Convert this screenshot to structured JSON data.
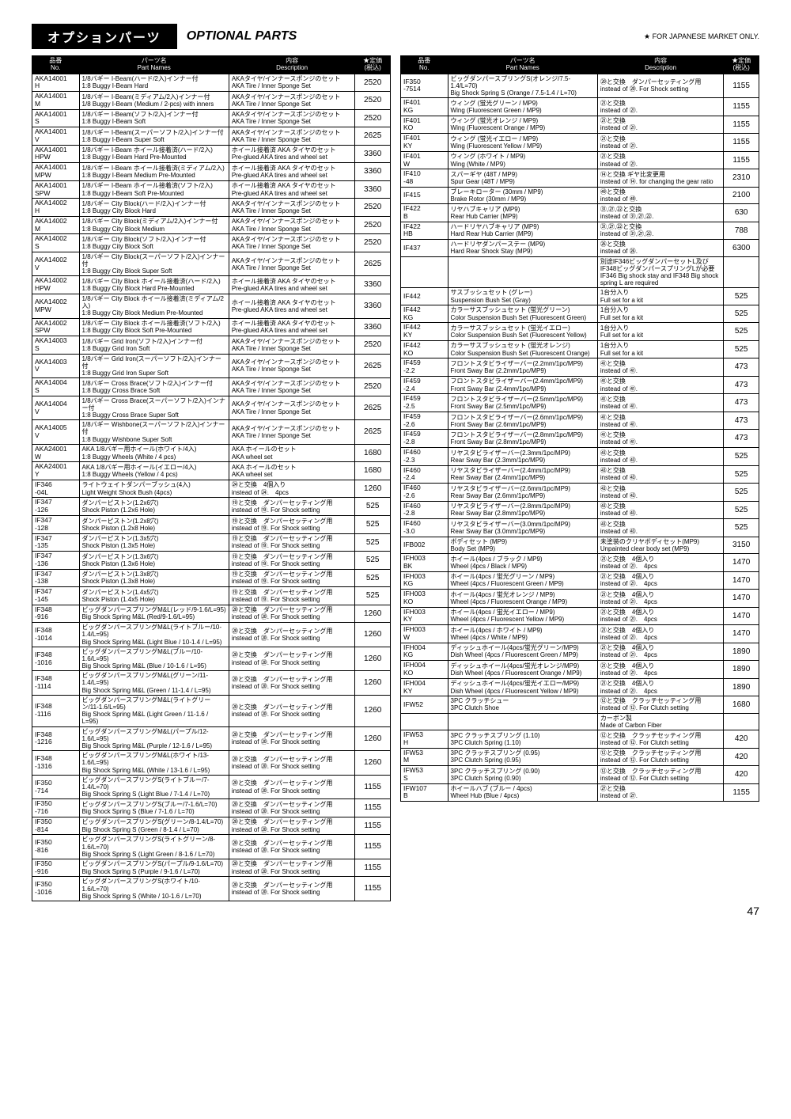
{
  "header": {
    "titleJp": "オプションパーツ",
    "titleEn": "OPTIONAL PARTS",
    "starNote": "★ FOR JAPANESE MARKET ONLY."
  },
  "columns": {
    "no": {
      "jp": "品番",
      "en": "No."
    },
    "name": {
      "jp": "パーツ名",
      "en": "Part Names"
    },
    "desc": {
      "jp": "内容",
      "en": "Description"
    },
    "price": {
      "jp": "★定価",
      "en": "(税込)"
    }
  },
  "leftRows": [
    {
      "no": "AKA14001\nH",
      "nameJp": "1/8バギー I-Beam(ハード/2入)インナー付",
      "nameEn": "1:8 Buggy I-Beam Hard",
      "descJp": "AKAタイヤ/インナースポンジのセット",
      "descEn": "AKA Tire / Inner Sponge Set",
      "price": "2520"
    },
    {
      "no": "AKA14001\nM",
      "nameJp": "1/8バギー I-Beam(ミディアム/2入)インナー付",
      "nameEn": "1/8 Buggy I-Beam (Medium / 2-pcs) with inners",
      "descJp": "AKAタイヤ/インナースポンジのセット",
      "descEn": "AKA Tire / Inner Sponge Set",
      "price": "2520"
    },
    {
      "no": "AKA14001\nS",
      "nameJp": "1/8バギー I-Beam(ソフト/2入)インナー付",
      "nameEn": "1:8 Buggy I-Beam Soft",
      "descJp": "AKAタイヤ/インナースポンジのセット",
      "descEn": "AKA Tire / Inner Sponge Set",
      "price": "2520"
    },
    {
      "no": "AKA14001\nV",
      "nameJp": "1/8バギー I-Beam(スーパーソフト/2入)インナー付",
      "nameEn": "1:8 Buggy I-Beam Super Soft",
      "descJp": "AKAタイヤ/インナースポンジのセット",
      "descEn": "AKA Tire / Inner Sponge Set",
      "price": "2625"
    },
    {
      "no": "AKA14001\nHPW",
      "nameJp": "1/8バギー I-Beam ホイール接着済(ハード/2入)",
      "nameEn": "1:8 Buggy I-Beam Hard Pre-Mounted",
      "descJp": "ホイール接着済 AKA タイヤのセット",
      "descEn": "Pre-glued AKA tires and wheel set",
      "price": "3360"
    },
    {
      "no": "AKA14001\nMPW",
      "nameJp": "1/8バギー I-Beam ホイール接着済(ミディアム/2入)",
      "nameEn": "1:8 Buggy I-Beam Medium Pre-Mounted",
      "descJp": "ホイール接着済 AKA タイヤのセット",
      "descEn": "Pre-glued AKA tires and wheel set",
      "price": "3360"
    },
    {
      "no": "AKA14001\nSPW",
      "nameJp": "1/8バギー I-Beam ホイール接着済(ソフト/2入)",
      "nameEn": "1:8 Buggy I-Beam Soft Pre-Mounted",
      "descJp": "ホイール接着済 AKA タイヤのセット",
      "descEn": "Pre-glued AKA tires and wheel set",
      "price": "3360"
    },
    {
      "no": "AKA14002\nH",
      "nameJp": "1/8バギー City Block(ハード/2入)インナー付",
      "nameEn": "1:8 Buggy City Block Hard",
      "descJp": "AKAタイヤ/インナースポンジのセット",
      "descEn": "AKA Tire / Inner Sponge Set",
      "price": "2520"
    },
    {
      "no": "AKA14002\nM",
      "nameJp": "1/8バギー City Block(ミディアム/2入)インナー付",
      "nameEn": "1:8 Buggy City Block Medium",
      "descJp": "AKAタイヤ/インナースポンジのセット",
      "descEn": "AKA Tire / Inner Sponge Set",
      "price": "2520"
    },
    {
      "no": "AKA14002\nS",
      "nameJp": "1/8バギー City Block(ソフト/2入)インナー付",
      "nameEn": "1:8 Buggy City Block Soft",
      "descJp": "AKAタイヤ/インナースポンジのセット",
      "descEn": "AKA Tire / Inner Sponge Set",
      "price": "2520"
    },
    {
      "no": "AKA14002\nV",
      "nameJp": "1/8バギー City Block(スーパーソフト/2入)インナー付",
      "nameEn": "1:8 Buggy City Block Super Soft",
      "descJp": "AKAタイヤ/インナースポンジのセット",
      "descEn": "AKA Tire / Inner Sponge Set",
      "price": "2625"
    },
    {
      "no": "AKA14002\nHPW",
      "nameJp": "1/8バギー City Block ホイール接着済(ハード/2入)",
      "nameEn": "1:8 Buggy City Block Hard Pre-Mounted",
      "descJp": "ホイール接着済 AKA タイヤのセット",
      "descEn": "Pre-glued AKA tires and wheel set",
      "price": "3360"
    },
    {
      "no": "AKA14002\nMPW",
      "nameJp": "1/8バギー City Block ホイール接着済(ミディアム/2入)",
      "nameEn": "1:8 Buggy City Block Medium Pre-Mounted",
      "descJp": "ホイール接着済 AKA タイヤのセット",
      "descEn": "Pre-glued AKA tires and wheel set",
      "price": "3360"
    },
    {
      "no": "AKA14002\nSPW",
      "nameJp": "1/8バギー City Block ホイール接着済(ソフト/2入)",
      "nameEn": "1:8 Buggy City Block Soft Pre-Mounted",
      "descJp": "ホイール接着済 AKA タイヤのセット",
      "descEn": "Pre-glued AKA tires and wheel set",
      "price": "3360"
    },
    {
      "no": "AKA14003\nS",
      "nameJp": "1/8バギー Grid Iron(ソフト/2入)インナー付",
      "nameEn": "1:8 Buggy Grid Iron Soft",
      "descJp": "AKAタイヤ/インナースポンジのセット",
      "descEn": "AKA Tire / Inner Sponge Set",
      "price": "2520"
    },
    {
      "no": "AKA14003\nV",
      "nameJp": "1/8バギー Grid Iron(スーパーソフト/2入)インナー付",
      "nameEn": "1:8 Buggy Grid Iron Super Soft",
      "descJp": "AKAタイヤ/インナースポンジのセット",
      "descEn": "AKA Tire / Inner Sponge Set",
      "price": "2625"
    },
    {
      "no": "AKA14004\nS",
      "nameJp": "1/8バギー Cross Brace(ソフト/2入)インナー付",
      "nameEn": "1:8 Buggy Cross Brace Soft",
      "descJp": "AKAタイヤ/インナースポンジのセット",
      "descEn": "AKA Tire / Inner Sponge Set",
      "price": "2520"
    },
    {
      "no": "AKA14004\nV",
      "nameJp": "1/8バギー Cross Brace(スーパーソフト/2入)インナー付",
      "nameEn": "1:8 Buggy Cross Brace Super Soft",
      "descJp": "AKAタイヤ/インナースポンジのセット",
      "descEn": "AKA Tire / Inner Sponge Set",
      "price": "2625"
    },
    {
      "no": "AKA14005\nV",
      "nameJp": "1/8バギー Wishbone(スーパーソフト/2入)インナー付",
      "nameEn": "1:8 Buggy Wishbone Super Soft",
      "descJp": "AKAタイヤ/インナースポンジのセット",
      "descEn": "AKA Tire / Inner Sponge Set",
      "price": "2625"
    },
    {
      "no": "AKA24001\nW",
      "nameJp": "AKA 1/8バギー用ホイール(ホワイト/4入)",
      "nameEn": "1:8 Buggy Wheels (White / 4 pcs)",
      "descJp": "AKA ホイールのセット",
      "descEn": "AKA wheel set",
      "price": "1680"
    },
    {
      "no": "AKA24001\nY",
      "nameJp": "AKA 1/8バギー用ホイール(イエロー/4入)",
      "nameEn": "1:8 Buggy Wheels (Yellow / 4 pcs)",
      "descJp": "AKA ホイールのセット",
      "descEn": "AKA wheel set",
      "price": "1680"
    },
    {
      "no": "IF346\n-04L",
      "nameJp": "ライトウェイトダンパーブッシュ(4入)",
      "nameEn": "Light Weight Shock Bush (4pcs)",
      "descJp": "㉔と交換　4個入り",
      "descEn": "instead of ㉔.　4pcs",
      "price": "1260"
    },
    {
      "no": "IF347\n-126",
      "nameJp": "ダンパーピストン(1.2x6穴)",
      "nameEn": "Shock Piston (1.2x6 Hole)",
      "descJp": "⑲と交換　ダンパーセッティング用",
      "descEn": "instead of ⑲. For Shock setting",
      "price": "525"
    },
    {
      "no": "IF347\n-128",
      "nameJp": "ダンパーピストン(1.2x8穴)",
      "nameEn": "Shock Piston (1.2x8 Hole)",
      "descJp": "⑲と交換　ダンパーセッティング用",
      "descEn": "instead of ⑲. For Shock setting",
      "price": "525"
    },
    {
      "no": "IF347\n-135",
      "nameJp": "ダンパーピストン(1.3x5穴)",
      "nameEn": "Shock Piston (1.3x5 Hole)",
      "descJp": "⑲と交換　ダンパーセッティング用",
      "descEn": "instead of ⑲. For Shock setting",
      "price": "525"
    },
    {
      "no": "IF347\n-136",
      "nameJp": "ダンパーピストン(1.3x6穴)",
      "nameEn": "Shock Piston (1.3x6 Hole)",
      "descJp": "⑲と交換　ダンパーセッティング用",
      "descEn": "instead of ⑲. For Shock setting",
      "price": "525"
    },
    {
      "no": "IF347\n-138",
      "nameJp": "ダンパーピストン(1.3x8穴)",
      "nameEn": "Shock Piston (1.3x8 Hole)",
      "descJp": "⑲と交換　ダンパーセッティング用",
      "descEn": "instead of ⑲. For Shock setting",
      "price": "525"
    },
    {
      "no": "IF347\n-145",
      "nameJp": "ダンパーピストン(1.4x5穴)",
      "nameEn": "Shock Piston (1.4x5 Hole)",
      "descJp": "⑲と交換　ダンパーセッティング用",
      "descEn": "instead of ⑲. For Shock setting",
      "price": "525"
    },
    {
      "no": "IF348\n-916",
      "nameJp": "ビッグダンパースプリングM&L(レッド/9-1.6/L=95)",
      "nameEn": "Big Shock Spring M&L (Red/9-1.6/L=95)",
      "descJp": "⑳と交換　ダンパーセッティング用",
      "descEn": "instead of ⑳. For Shock setting",
      "price": "1260"
    },
    {
      "no": "IF348\n-1014",
      "nameJp": "ビッグダンパースプリングM&L(ライトブルー/10-1.4/L=95)",
      "nameEn": "Big Shock Spring M&L (Light Blue / 10-1.4 / L=95)",
      "descJp": "⑳と交換　ダンパーセッティング用",
      "descEn": "instead of ⑳. For Shock setting",
      "price": "1260"
    },
    {
      "no": "IF348\n-1016",
      "nameJp": "ビッグダンパースプリングM&L(ブルー/10-1.6/L=95)",
      "nameEn": "Big Shock Spring M&L (Blue / 10-1.6 / L=95)",
      "descJp": "⑳と交換　ダンパーセッティング用",
      "descEn": "instead of ⑳. For Shock setting",
      "price": "1260"
    },
    {
      "no": "IF348\n-1114",
      "nameJp": "ビッグダンパースプリングM&L(グリーン/11-1.4/L=95)",
      "nameEn": "Big Shock Spring M&L (Green / 11-1.4 / L=95)",
      "descJp": "⑳と交換　ダンパーセッティング用",
      "descEn": "instead of ⑳. For Shock setting",
      "price": "1260"
    },
    {
      "no": "IF348\n-1116",
      "nameJp": "ビッグダンパースプリングM&L(ライトグリーン/11-1.6/L=95)",
      "nameEn": "Big Shock Spring M&L (Light Green / 11-1.6 / L=95)",
      "descJp": "⑳と交換　ダンパーセッティング用",
      "descEn": "instead of ⑳. For Shock setting",
      "price": "1260"
    },
    {
      "no": "IF348\n-1216",
      "nameJp": "ビッグダンパースプリングM&L(パープル/12-1.6/L=95)",
      "nameEn": "Big Shock Spring M&L (Purple / 12-1.6 / L=95)",
      "descJp": "⑳と交換　ダンパーセッティング用",
      "descEn": "instead of ⑳. For Shock setting",
      "price": "1260"
    },
    {
      "no": "IF348\n-1316",
      "nameJp": "ビッグダンパースプリングM&L(ホワイト/13-1.6/L=95)",
      "nameEn": "Big Shock Spring M&L (White / 13-1.6 / L=95)",
      "descJp": "⑳と交換　ダンパーセッティング用",
      "descEn": "instead of ⑳. For Shock setting",
      "price": "1260"
    },
    {
      "no": "IF350\n-714",
      "nameJp": "ビッグダンパースプリングS(ライトブルー/7-1.4/L=70)",
      "nameEn": "Big Shock Spring S (Light Blue / 7-1.4 / L=70)",
      "descJp": "⑳と交換　ダンパーセッティング用",
      "descEn": "instead of ⑳. For Shock setting",
      "price": "1155"
    },
    {
      "no": "IF350\n-716",
      "nameJp": "ビッグダンパースプリングS(ブルー/7-1.6/L=70)",
      "nameEn": "Big Shock Spring S (Blue / 7-1.6 / L=70)",
      "descJp": "⑳と交換　ダンパーセッティング用",
      "descEn": "instead of ⑳. For Shock setting",
      "price": "1155"
    },
    {
      "no": "IF350\n-814",
      "nameJp": "ビッグダンパースプリングS(グリーン/8-1.4/L=70)",
      "nameEn": "Big Shock Spring S (Green / 8-1.4 / L=70)",
      "descJp": "⑳と交換　ダンパーセッティング用",
      "descEn": "instead of ⑳. For Shock setting",
      "price": "1155"
    },
    {
      "no": "IF350\n-816",
      "nameJp": "ビッグダンパースプリングS(ライトグリーン/8-1.6/L=70)",
      "nameEn": "Big Shock Spring S (Light Green / 8-1.6 / L=70)",
      "descJp": "⑳と交換　ダンパーセッティング用",
      "descEn": "instead of ⑳. For Shock setting",
      "price": "1155"
    },
    {
      "no": "IF350\n-916",
      "nameJp": "ビッグダンパースプリングS(パープル/9-1.6/L=70)",
      "nameEn": "Big Shock Spring S (Purple / 9-1.6 / L=70)",
      "descJp": "⑳と交換　ダンパーセッティング用",
      "descEn": "instead of ⑳. For Shock setting",
      "price": "1155"
    },
    {
      "no": "IF350\n-1016",
      "nameJp": "ビッグダンパースプリングS(ホワイト/10-1.6/L=70)",
      "nameEn": "Big Shock Spring S (White / 10-1.6 / L=70)",
      "descJp": "⑳と交換　ダンパーセッティング用",
      "descEn": "instead of ⑳. For Shock setting",
      "price": "1155"
    }
  ],
  "rightRows": [
    {
      "no": "IF350\n-7514",
      "nameJp": "ビッグダンパースプリングS(オレンジ/7.5-1.4/L=70)",
      "nameEn": "Big Shock Spring S (Orange / 7.5-1.4 / L=70)",
      "descJp": "⑳と交換　ダンパーセッティング用",
      "descEn": "instead of ⑳. For Shock setting",
      "price": "1155"
    },
    {
      "no": "IF401\nKG",
      "nameJp": "ウィング (蛍光グリーン / MP9)",
      "nameEn": "Wing (Fluorescent Green / MP9)",
      "descJp": "㉑と交換",
      "descEn": "instead of ㉑.",
      "price": "1155"
    },
    {
      "no": "IF401\nKO",
      "nameJp": "ウィング (蛍光オレンジ / MP9)",
      "nameEn": "Wing (Fluorescent Orange / MP9)",
      "descJp": "㉑と交換",
      "descEn": "instead of ㉑.",
      "price": "1155"
    },
    {
      "no": "IF401\nKY",
      "nameJp": "ウィング (蛍光イエロー / MP9)",
      "nameEn": "Wing (Fluorescent Yellow / MP9)",
      "descJp": "㉑と交換",
      "descEn": "instead of ㉑.",
      "price": "1155"
    },
    {
      "no": "IF401\nW",
      "nameJp": "ウィング (ホワイト / MP9)",
      "nameEn": "Wing (White / MP9)",
      "descJp": "㉑と交換",
      "descEn": "instead of ㉑.",
      "price": "1155"
    },
    {
      "no": "IF410\n-48",
      "nameJp": "スパーギヤ (48T / MP9)",
      "nameEn": "Spur Gear (48T / MP9)",
      "descJp": "⑭と交換 ギヤ比変更用",
      "descEn": "instead of ⑭. for changing the gear ratio",
      "price": "2310"
    },
    {
      "no": "IF415",
      "nameJp": "ブレーキローター (30mm / MP9)",
      "nameEn": "Brake Rotor (30mm / MP9)",
      "descJp": "㊾と交換",
      "descEn": "instead of ㊾.",
      "price": "2100"
    },
    {
      "no": "IF422\nB",
      "nameJp": "リヤハブキャリア (MP9)",
      "nameEn": "Rear Hub Carrier (MP9)",
      "descJp": "㉛,㉗,㉒と交換",
      "descEn": "instead of ㉛,㉗,㉒.",
      "price": "630"
    },
    {
      "no": "IF422\nHB",
      "nameJp": "ハードリヤハブキャリア (MP9)",
      "nameEn": "Hard Rear Hub Carrier (MP9)",
      "descJp": "㉛,㉗,㉒と交換",
      "descEn": "instead of ㉛,㉗,㉒.",
      "price": "788"
    },
    {
      "no": "IF437",
      "nameJp": "ハードリヤダンパーステー (MP9)",
      "nameEn": "Hard Rear Shock Stay (MP9)",
      "descJp": "㉖と交換",
      "descEn": "instead of ㉖.",
      "price": "6300"
    },
    {
      "no": "",
      "nameJp": "",
      "nameEn": "",
      "descJp": "別途IF346ビッグダンパーセットL及び IF348ビッグダンパースプリングLが必要",
      "descEn": "IF346 Big shock stay and IF348 Big shock spring L are required",
      "price": ""
    },
    {
      "no": "IF442",
      "nameJp": "サスブッシュセット (グレー)",
      "nameEn": "Suspension Bush Set (Gray)",
      "descJp": "1台分入り",
      "descEn": "Full set for a kit",
      "price": "525"
    },
    {
      "no": "IF442\nKG",
      "nameJp": "カラーサスブッシュセット (蛍光グリーン)",
      "nameEn": "Color Suspension Bush Set (Fluorescent Green)",
      "descJp": "1台分入り",
      "descEn": "Full set for a kit",
      "price": "525"
    },
    {
      "no": "IF442\nKY",
      "nameJp": "カラーサスブッシュセット (蛍光イエロー)",
      "nameEn": "Color Suspension Bush Set (Fluorescent Yellow)",
      "descJp": "1台分入り",
      "descEn": "Full set for a kit",
      "price": "525"
    },
    {
      "no": "IF442\nKO",
      "nameJp": "カラーサスブッシュセット (蛍光オレンジ)",
      "nameEn": "Color Suspension Bush Set (Fluorescent Orange)",
      "descJp": "1台分入り",
      "descEn": "Full set for a kit",
      "price": "525"
    },
    {
      "no": "IF459\n-2.2",
      "nameJp": "フロントスタビライザーバー(2.2mm/1pc/MP9)",
      "nameEn": "Front Sway Bar (2.2mm/1pc/MP9)",
      "descJp": "㊶と交換",
      "descEn": "instead of ㊶.",
      "price": "473"
    },
    {
      "no": "IF459\n-2.4",
      "nameJp": "フロントスタビライザーバー(2.4mm/1pc/MP9)",
      "nameEn": "Front Sway Bar (2.4mm/1pc/MP9)",
      "descJp": "㊶と交換",
      "descEn": "instead of ㊶.",
      "price": "473"
    },
    {
      "no": "IF459\n-2.5",
      "nameJp": "フロントスタビライザーバー(2.5mm/1pc/MP9)",
      "nameEn": "Front Sway Bar (2.5mm/1pc/MP9)",
      "descJp": "㊶と交換",
      "descEn": "instead of ㊶.",
      "price": "473"
    },
    {
      "no": "IF459\n-2.6",
      "nameJp": "フロントスタビライザーバー(2.6mm/1pc/MP9)",
      "nameEn": "Front Sway Bar (2.6mm/1pc/MP9)",
      "descJp": "㊶と交換",
      "descEn": "instead of ㊶.",
      "price": "473"
    },
    {
      "no": "IF459\n-2.8",
      "nameJp": "フロントスタビライザーバー(2.8mm/1pc/MP9)",
      "nameEn": "Front Sway Bar (2.8mm/1pc/MP9)",
      "descJp": "㊶と交換",
      "descEn": "instead of ㊶.",
      "price": "473"
    },
    {
      "no": "IF460\n-2.3",
      "nameJp": "リヤスタビライザーバー(2.3mm/1pc/MP9)",
      "nameEn": "Rear Sway Bar (2.3mm/1pc/MP9)",
      "descJp": "㊸と交換",
      "descEn": "instead of ㊸.",
      "price": "525"
    },
    {
      "no": "IF460\n-2.4",
      "nameJp": "リヤスタビライザーバー(2.4mm/1pc/MP9)",
      "nameEn": "Rear Sway Bar (2.4mm/1pc/MP9)",
      "descJp": "㊸と交換",
      "descEn": "instead of ㊸.",
      "price": "525"
    },
    {
      "no": "IF460\n-2.6",
      "nameJp": "リヤスタビライザーバー(2.6mm/1pc/MP9)",
      "nameEn": "Rear Sway Bar (2.6mm/1pc/MP9)",
      "descJp": "㊸と交換",
      "descEn": "instead of ㊸.",
      "price": "525"
    },
    {
      "no": "IF460\n-2.8",
      "nameJp": "リヤスタビライザーバー(2.8mm/1pc/MP9)",
      "nameEn": "Rear Sway Bar (2.8mm/1pc/MP9)",
      "descJp": "㊸と交換",
      "descEn": "instead of ㊸.",
      "price": "525"
    },
    {
      "no": "IF460\n-3.0",
      "nameJp": "リヤスタビライザーバー(3.0mm/1pc/MP9)",
      "nameEn": "Rear Sway Bar (3.0mm/1pc/MP9)",
      "descJp": "㊸と交換",
      "descEn": "instead of ㊸.",
      "price": "525"
    },
    {
      "no": "IFB002",
      "nameJp": "ボディセット (MP9)",
      "nameEn": "Body Set (MP9)",
      "descJp": "未塗装のクリヤボディセット(MP9)",
      "descEn": "Unpainted clear body set (MP9)",
      "price": "3150"
    },
    {
      "no": "IFH003\nBK",
      "nameJp": "ホイール(4pcs / ブラック / MP9)",
      "nameEn": "Wheel (4pcs / Black / MP9)",
      "descJp": "㉑と交換　4個入り",
      "descEn": "instead of ㉑.　4pcs",
      "price": "1470"
    },
    {
      "no": "IFH003\nKG",
      "nameJp": "ホイール(4pcs / 蛍光グリーン / MP9)",
      "nameEn": "Wheel (4pcs / Fluorescent Green / MP9)",
      "descJp": "㉑と交換　4個入り",
      "descEn": "instead of ㉑.　4pcs",
      "price": "1470"
    },
    {
      "no": "IFH003\nKO",
      "nameJp": "ホイール(4pcs / 蛍光オレンジ / MP9)",
      "nameEn": "Wheel (4pcs / Fluorescent Orange / MP9)",
      "descJp": "㉑と交換　4個入り",
      "descEn": "instead of ㉑.　4pcs",
      "price": "1470"
    },
    {
      "no": "IFH003\nKY",
      "nameJp": "ホイール(4pcs / 蛍光イエロー / MP9)",
      "nameEn": "Wheel (4pcs / Fluorescent Yellow / MP9)",
      "descJp": "㉑と交換　4個入り",
      "descEn": "instead of ㉑.　4pcs",
      "price": "1470"
    },
    {
      "no": "IFH003\nW",
      "nameJp": "ホイール(4pcs / ホワイト / MP9)",
      "nameEn": "Wheel (4pcs / White / MP9)",
      "descJp": "㉑と交換　4個入り",
      "descEn": "instead of ㉑.　4pcs",
      "price": "1470"
    },
    {
      "no": "IFH004\nKG",
      "nameJp": "ディッシュホイール(4pcs/蛍光グリーン/MP9)",
      "nameEn": "Dish Wheel (4pcs / Fluorescent Green / MP9)",
      "descJp": "㉑と交換　4個入り",
      "descEn": "instead of ㉑.　4pcs",
      "price": "1890"
    },
    {
      "no": "IFH004\nKO",
      "nameJp": "ディッシュホイール(4pcs/蛍光オレンジ/MP9)",
      "nameEn": "Dish Wheel (4pcs / Fluorescent Orange / MP9)",
      "descJp": "㉑と交換　4個入り",
      "descEn": "instead of ㉑.　4pcs",
      "price": "1890"
    },
    {
      "no": "IFH004\nKY",
      "nameJp": "ディッシュホイール(4pcs/蛍光イエロー/MP9)",
      "nameEn": "Dish Wheel (4pcs / Fluorescent Yellow / MP9)",
      "descJp": "㉑と交換　4個入り",
      "descEn": "instead of ㉑.　4pcs",
      "price": "1890"
    },
    {
      "no": "IFW52",
      "nameJp": "3PC クラッチシュー",
      "nameEn": "3PC Clutch Shoe",
      "descJp": "⑫と交換　クラッチセッティング用",
      "descEn": "instead of ⑫. For Clutch setting",
      "price": "1680"
    },
    {
      "no": "",
      "nameJp": "",
      "nameEn": "",
      "descJp": "カーボン製",
      "descEn": "Made of Carbon Fiber",
      "price": ""
    },
    {
      "no": "IFW53\nH",
      "nameJp": "3PC クラッチスプリング (1.10)",
      "nameEn": "3PC Clutch Spring (1.10)",
      "descJp": "⑫と交換　クラッチセッティング用",
      "descEn": "instead of ⑫. For Clutch setting",
      "price": "420"
    },
    {
      "no": "IFW53\nM",
      "nameJp": "3PC クラッチスプリング (0.95)",
      "nameEn": "3PC Clutch Spring (0.95)",
      "descJp": "⑫と交換　クラッチセッティング用",
      "descEn": "instead of ⑫. For Clutch setting",
      "price": "420"
    },
    {
      "no": "IFW53\nS",
      "nameJp": "3PC クラッチスプリング (0.90)",
      "nameEn": "3PC Clutch Spring (0.90)",
      "descJp": "⑫と交換　クラッチセッティング用",
      "descEn": "instead of ⑫. For Clutch setting",
      "price": "420"
    },
    {
      "no": "IFW107\nB",
      "nameJp": "ホイールハブ (ブルー / 4pcs)",
      "nameEn": "Wheel Hub (Blue / 4pcs)",
      "descJp": "㉗と交換",
      "descEn": "instead of ㉗.",
      "price": "1155"
    }
  ],
  "pageNum": "47"
}
